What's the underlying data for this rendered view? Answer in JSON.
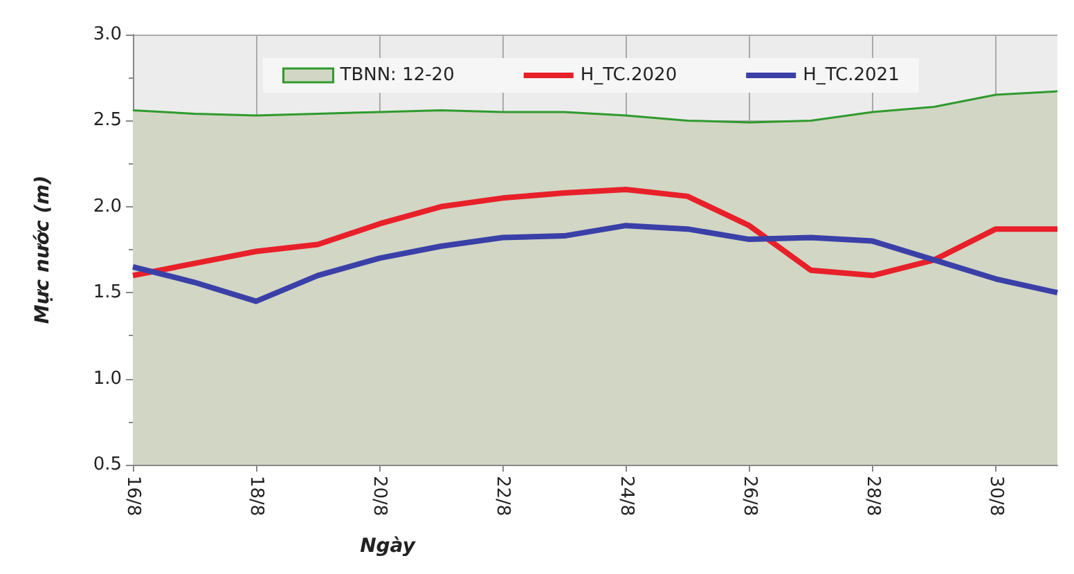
{
  "chart_data": {
    "type": "line",
    "xlabel": "Ngày",
    "ylabel": "Mực nước (m)",
    "categories": [
      "16/8",
      null,
      "18/8",
      null,
      "20/8",
      null,
      "22/8",
      null,
      "24/8",
      null,
      "26/8",
      null,
      "28/8",
      null,
      "30/8",
      null
    ],
    "series": [
      {
        "name": "TBNN: 12-20",
        "type": "area",
        "color": "#2e9a2e",
        "values": [
          2.56,
          2.54,
          2.53,
          2.54,
          2.55,
          2.56,
          2.55,
          2.55,
          2.53,
          2.5,
          2.49,
          2.5,
          2.55,
          2.58,
          2.65,
          2.67
        ]
      },
      {
        "name": "H_TC.2020",
        "color": "#e8202a",
        "values": [
          1.6,
          1.67,
          1.74,
          1.78,
          1.9,
          2.0,
          2.05,
          2.08,
          2.1,
          2.06,
          1.89,
          1.63,
          1.6,
          1.69,
          1.87,
          1.87
        ]
      },
      {
        "name": "H_TC.2021",
        "color": "#3a40a8",
        "values": [
          1.65,
          1.56,
          1.45,
          1.6,
          1.7,
          1.77,
          1.82,
          1.83,
          1.89,
          1.87,
          1.81,
          1.82,
          1.8,
          1.69,
          1.58,
          1.5
        ]
      }
    ],
    "ylim": [
      0.5,
      3.0
    ],
    "yticks": [
      0.5,
      {
        "value": 1,
        "label": "1.0"
      },
      1.5,
      {
        "value": 2,
        "label": "2.0"
      },
      2.5,
      {
        "value": 3,
        "label": "3.0"
      }
    ],
    "grid": true,
    "legend": "top",
    "marker": "none",
    "line_style": "solid"
  }
}
